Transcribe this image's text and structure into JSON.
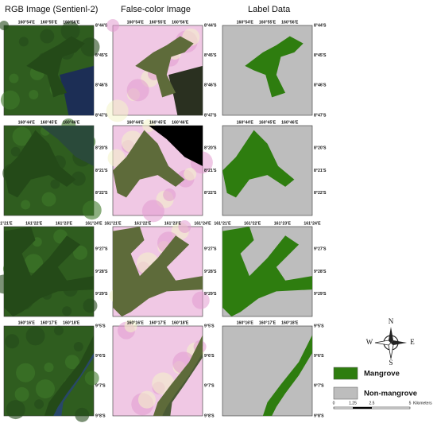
{
  "columns": [
    "RGB Image (Sentienl-2)",
    "False-color Image",
    "Label Data"
  ],
  "rows": [
    {
      "lon": [
        "160°54'E",
        "160°55'E",
        "160°56'E"
      ],
      "lat": [
        "8°44'S",
        "8°45'S",
        "8°46'S",
        "8°47'S"
      ]
    },
    {
      "lon": [
        "160°44'E",
        "160°45'E",
        "160°46'E"
      ],
      "lat": [
        "8°20'S",
        "8°21'S",
        "8°22'S"
      ]
    },
    {
      "lon": [
        "161°21'E",
        "161°22'E",
        "161°23'E",
        "161°24'E"
      ],
      "lat": [
        "9°27'S",
        "9°28'S",
        "9°29'S"
      ]
    },
    {
      "lon": [
        "160°16'E",
        "160°17'E",
        "160°18'E"
      ],
      "lat": [
        "9°5'S",
        "9°6'S",
        "9°7'S",
        "9°8'S"
      ]
    }
  ],
  "legend": [
    "Mangrove",
    "Non-mangrove"
  ],
  "scale_bar": {
    "labels": [
      "0",
      "1.25",
      "2.5",
      "5"
    ],
    "unit": "Kilometers"
  },
  "compass": {
    "north": "N",
    "south": "S",
    "east": "E",
    "west": "W"
  }
}
